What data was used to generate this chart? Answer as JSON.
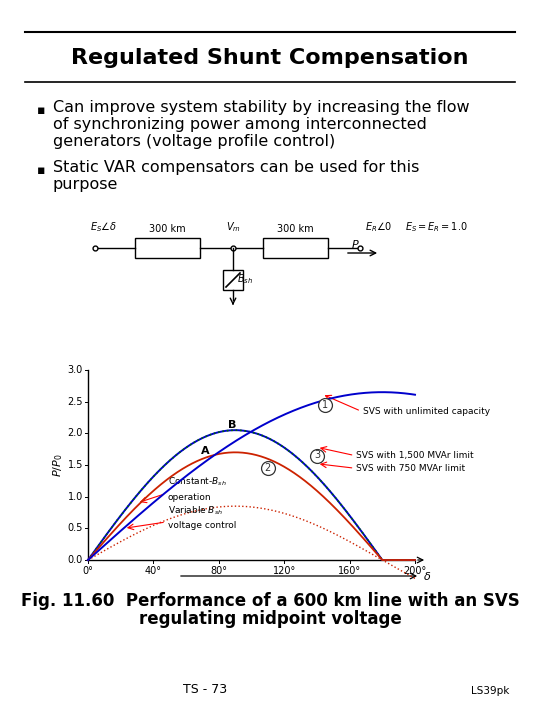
{
  "title": "Regulated Shunt Compensation",
  "bullet1_line1": "Can improve system stability by increasing the flow",
  "bullet1_line2": "of synchronizing power among interconnected",
  "bullet1_line3": "generators (voltage profile control)",
  "bullet2_line1": "Static VAR compensators can be used for this",
  "bullet2_line2": "purpose",
  "fig_caption_line1": "Fig. 11.60  Performance of a 600 km line with an SVS",
  "fig_caption_line2": "regulating midpoint voltage",
  "footer_left": "TS - 73",
  "footer_right": "LS39pk",
  "bg_color": "#ffffff",
  "text_color": "#000000",
  "line_color": "#000000",
  "title_fontsize": 16,
  "bullet_fontsize": 11.5,
  "caption_fontsize": 12,
  "footer_fontsize": 9,
  "curve1_color": "#0000CC",
  "curve2_color": "#008800",
  "curve3_color": "#CC2200",
  "curve4_color": "#0000CC",
  "curve_bsh_const_color": "#CC0000",
  "curve_bsh_var_color": "#008800"
}
